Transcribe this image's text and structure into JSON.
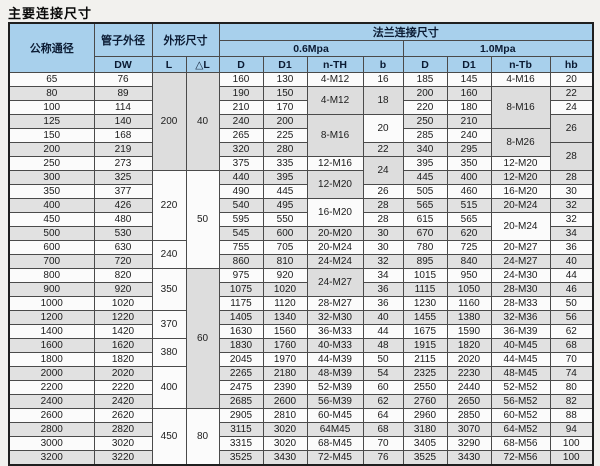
{
  "title": "主要连接尺寸",
  "colors": {
    "header_bg": "#a8d0ec",
    "row_main": "#fbfbfb",
    "row_alt": "#e1e1e1",
    "shade": "#dddddd",
    "border": "#4a4a4a"
  },
  "table": {
    "headers": {
      "nominal_diameter": "公称通径",
      "pipe_outer_diameter": "管子外径",
      "overall_dimensions": "外形尺寸",
      "flange_connection": "法兰连接尺寸",
      "pressure_06": "0.6Mpa",
      "pressure_10": "1.0Mpa",
      "dw": "DW",
      "l": "L",
      "dl": "△L",
      "d": "D",
      "d1": "D1",
      "n_th": "n-TH",
      "b": "b",
      "n_tb": "n-Tb",
      "hb": "hb"
    },
    "row_count": 28,
    "columns": {
      "dn": [
        "65",
        "80",
        "100",
        "125",
        "150",
        "200",
        "250",
        "300",
        "350",
        "400",
        "450",
        "500",
        "600",
        "700",
        "800",
        "900",
        "1000",
        "1200",
        "1400",
        "1600",
        "1800",
        "2000",
        "2200",
        "2400",
        "2600",
        "2800",
        "3000",
        "3200"
      ],
      "dw": [
        "76",
        "89",
        "114",
        "140",
        "168",
        "219",
        "273",
        "325",
        "377",
        "426",
        "480",
        "530",
        "630",
        "720",
        "820",
        "920",
        "1020",
        "1220",
        "1420",
        "1620",
        "1820",
        "2020",
        "2220",
        "2420",
        "2620",
        "2820",
        "3020",
        "3220"
      ],
      "L": [
        {
          "v": "200",
          "rows": 7,
          "shade": true
        },
        {
          "v": "220",
          "rows": 5
        },
        {
          "v": "240",
          "rows": 2
        },
        {
          "v": "350",
          "rows": 3
        },
        {
          "v": "370",
          "rows": 2
        },
        {
          "v": "380",
          "rows": 2
        },
        {
          "v": "400",
          "rows": 3
        },
        {
          "v": "450",
          "rows": 4
        }
      ],
      "dL": [
        {
          "v": "40",
          "rows": 7,
          "shade": true
        },
        {
          "v": "50",
          "rows": 7
        },
        {
          "v": "60",
          "rows": 10,
          "shade": true
        },
        {
          "v": "80",
          "rows": 4
        }
      ],
      "d06": [
        "160",
        "190",
        "210",
        "240",
        "265",
        "320",
        "375",
        "440",
        "490",
        "540",
        "595",
        "545",
        "755",
        "860",
        "975",
        "1075",
        "1175",
        "1405",
        "1630",
        "1830",
        "2045",
        "2265",
        "2475",
        "2685",
        "2905",
        "3115",
        "3315",
        "3525"
      ],
      "d106": [
        "130",
        "150",
        "170",
        "200",
        "225",
        "280",
        "335",
        "395",
        "445",
        "495",
        "550",
        "600",
        "705",
        "810",
        "920",
        "1020",
        "1120",
        "1340",
        "1560",
        "1760",
        "1970",
        "2180",
        "2390",
        "2600",
        "2810",
        "3020",
        "3020",
        "3430"
      ],
      "nth": [
        "4-M12",
        {
          "v": "4-M12",
          "rows": 2,
          "shade": true
        },
        {
          "v": "8-M16",
          "rows": 3,
          "shade": true
        },
        "12-M16",
        {
          "v": "12-M20",
          "rows": 2,
          "shade": true
        },
        {
          "v": "16-M20",
          "rows": 2
        },
        "20-M20",
        "20-M24",
        "24-M24",
        {
          "v": "24-M27",
          "rows": 2,
          "shade": true
        },
        "28-M27",
        "32-M30",
        "36-M33",
        "40-M33",
        "44-M39",
        "48-M39",
        "52-M39",
        "56-M39",
        "60-M45",
        "64M45",
        "68-M45",
        "72-M45"
      ],
      "b": [
        "16",
        {
          "v": "18",
          "rows": 2,
          "shade": true
        },
        {
          "v": "20",
          "rows": 2
        },
        "22",
        {
          "v": "24",
          "rows": 2,
          "shade": true
        },
        "26",
        "28",
        "28",
        "30",
        "30",
        "32",
        "34",
        "36",
        "36",
        "40",
        "44",
        "48",
        "50",
        "54",
        "60",
        "62",
        "64",
        "68",
        "70",
        "76"
      ],
      "d10": [
        "185",
        "200",
        "220",
        "250",
        "285",
        "340",
        "395",
        "445",
        "505",
        "565",
        "615",
        "670",
        "780",
        "895",
        "1015",
        "1115",
        "1230",
        "1455",
        "1675",
        "1915",
        "2115",
        "2325",
        "2550",
        "2760",
        "2960",
        "3180",
        "3405",
        "3525"
      ],
      "d110": [
        "145",
        "160",
        "180",
        "210",
        "240",
        "295",
        "350",
        "400",
        "460",
        "515",
        "565",
        "620",
        "725",
        "840",
        "950",
        "1050",
        "1160",
        "1380",
        "1590",
        "1820",
        "2020",
        "2230",
        "2440",
        "2650",
        "2850",
        "3070",
        "3290",
        "3430"
      ],
      "ntb": [
        "4-M16",
        {
          "v": "8-M16",
          "rows": 3,
          "shade": true
        },
        {
          "v": "8-M26",
          "rows": 2,
          "shade": true
        },
        "12-M20",
        "12-M20",
        "16-M20",
        "20-M24",
        {
          "v": "20-M24",
          "rows": 2
        },
        "20-M27",
        "24-M27",
        "24-M30",
        "28-M30",
        "28-M33",
        "32-M36",
        "36-M39",
        "40-M45",
        "44-M45",
        "48-M45",
        "52-M52",
        "56-M52",
        "60-M52",
        "64-M52",
        "68-M56",
        "72-M56"
      ],
      "hb": [
        "20",
        "22",
        "24",
        {
          "v": "26",
          "rows": 2,
          "shade": true
        },
        {
          "v": "28",
          "rows": 2,
          "shade": true
        },
        "28",
        "30",
        "32",
        "32",
        "34",
        "36",
        "40",
        "44",
        "46",
        "50",
        "56",
        "62",
        "68",
        "70",
        "74",
        "80",
        "82",
        "88",
        "94",
        "100",
        "100"
      ]
    }
  }
}
